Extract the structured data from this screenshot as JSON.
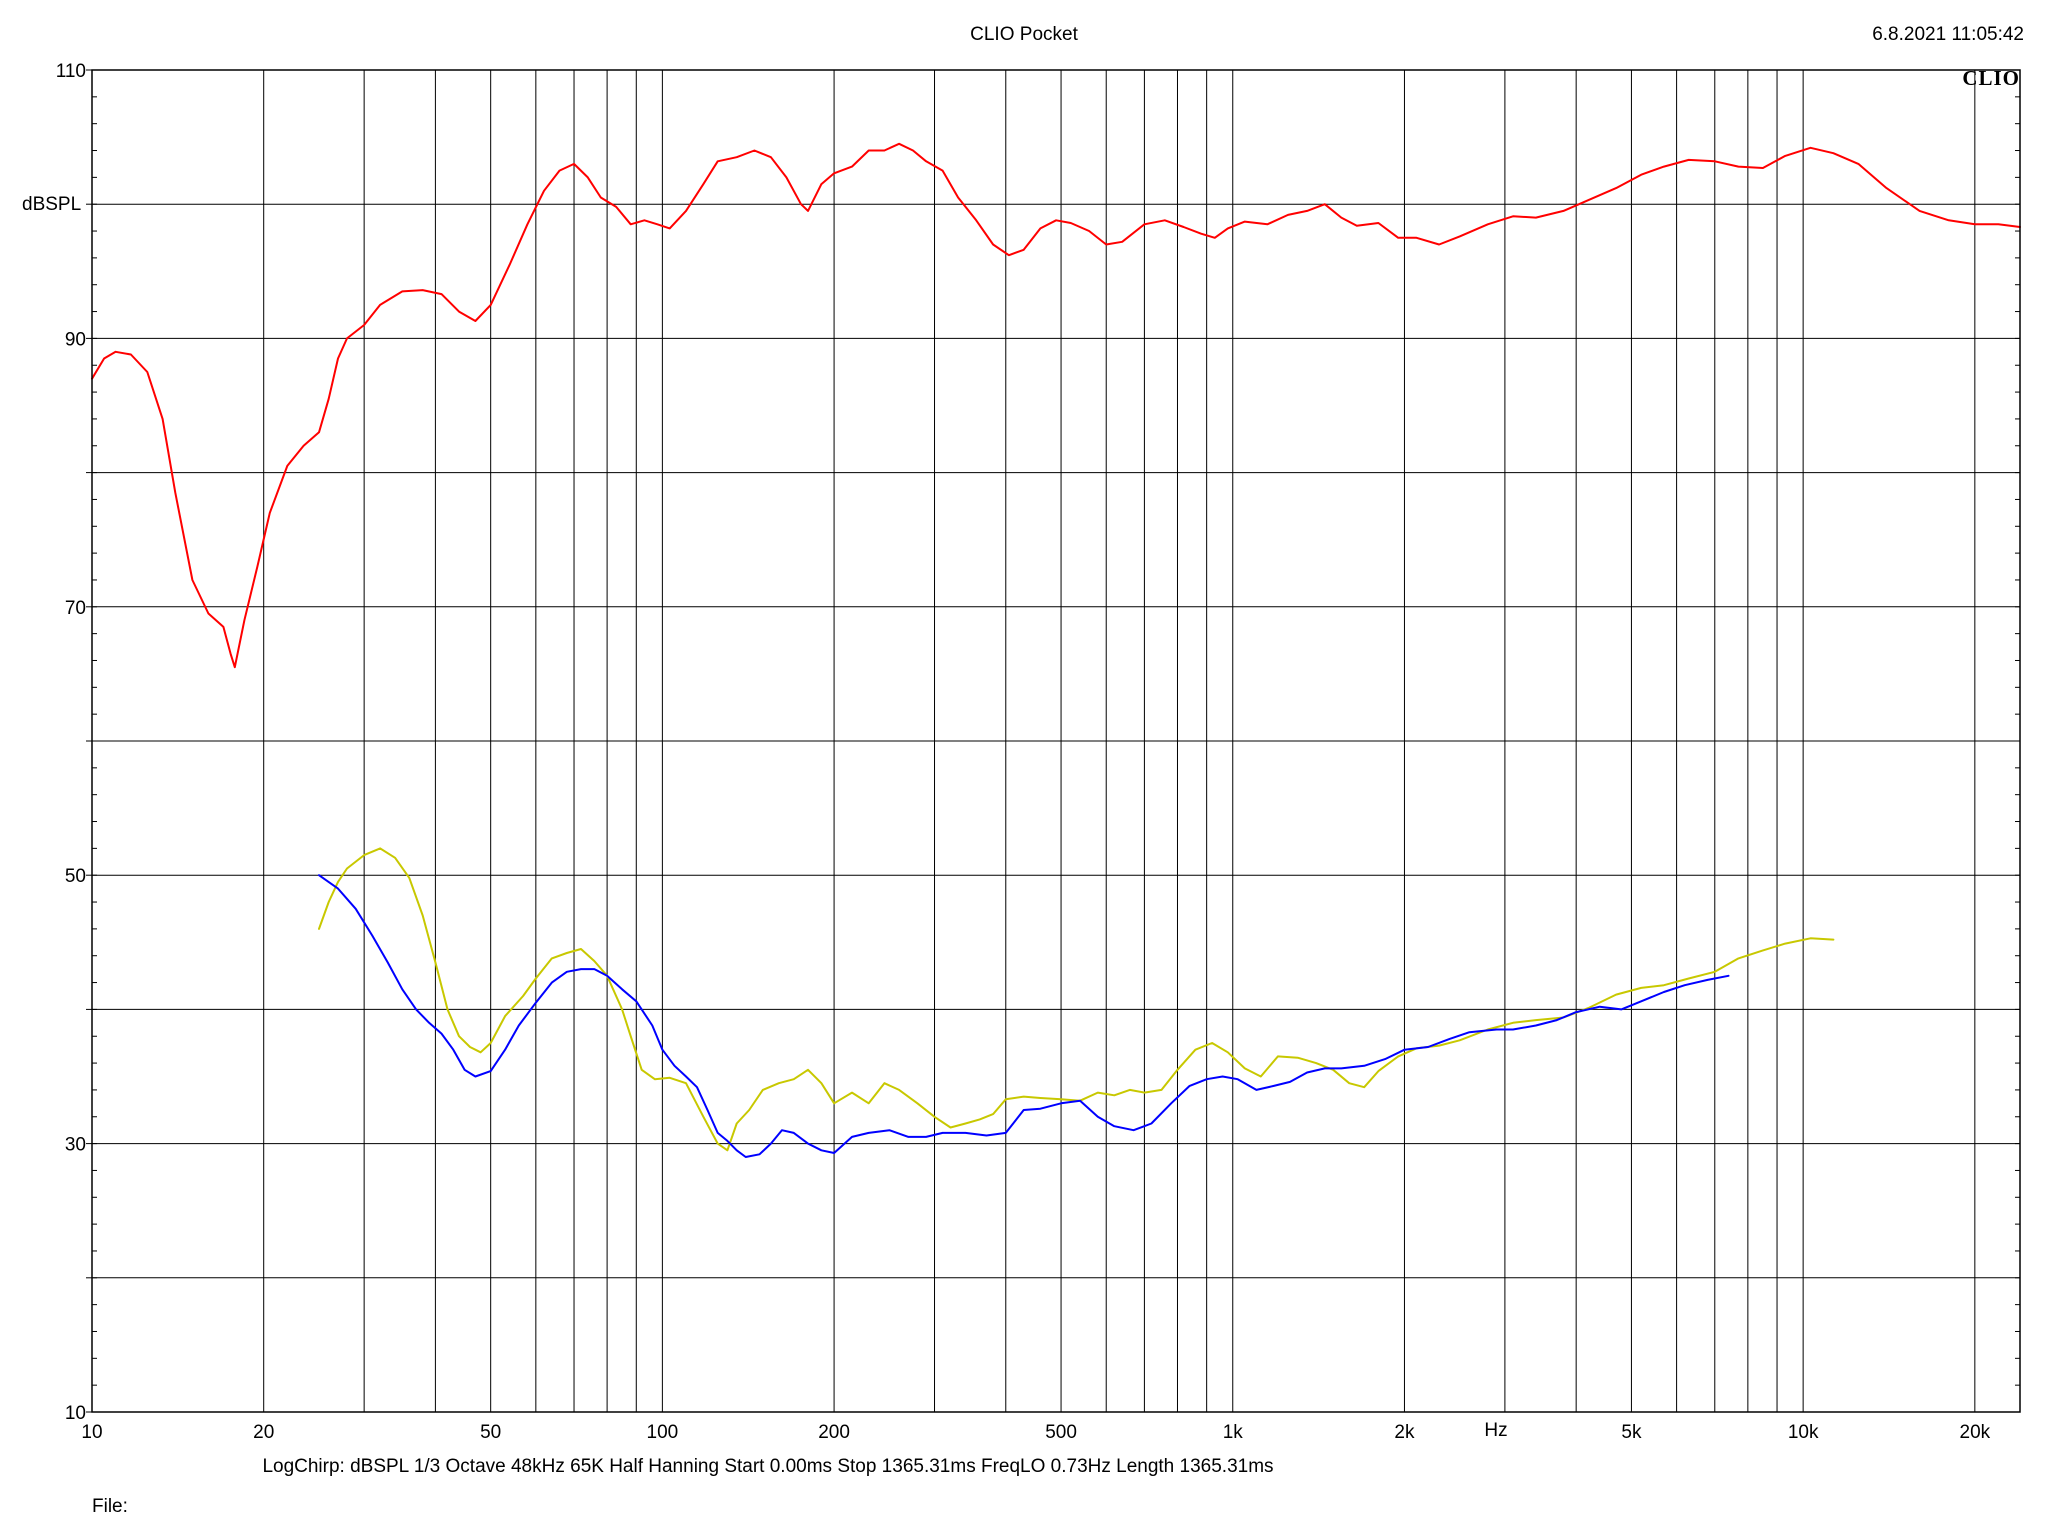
{
  "header": {
    "title": "CLIO Pocket",
    "timestamp": "6.8.2021 11:05:42",
    "logo": "CLIO"
  },
  "footer": {
    "params": "LogChirp:  dBSPL   1/3 Octave   48kHz   65K   Half Hanning   Start 0.00ms    Stop 1365.31ms    FreqLO 0.73Hz    Length 1365.31ms",
    "file_label": "File:"
  },
  "chart_data": {
    "type": "line",
    "title": "CLIO Pocket",
    "xlabel": "Hz",
    "ylabel": "dBSPL",
    "xscale": "log",
    "xlim": [
      10,
      24000
    ],
    "ylim": [
      10,
      110
    ],
    "grid": true,
    "legend": "none",
    "x_ticks": [
      {
        "value": 10,
        "label": "10"
      },
      {
        "value": 20,
        "label": "20"
      },
      {
        "value": 50,
        "label": "50"
      },
      {
        "value": 100,
        "label": "100"
      },
      {
        "value": 200,
        "label": "200"
      },
      {
        "value": 500,
        "label": "500"
      },
      {
        "value": 1000,
        "label": "1k"
      },
      {
        "value": 2000,
        "label": "2k"
      },
      {
        "value": 5000,
        "label": "5k"
      },
      {
        "value": 10000,
        "label": "10k"
      },
      {
        "value": 20000,
        "label": "20k"
      }
    ],
    "y_ticks": [
      {
        "value": 10,
        "label": "10"
      },
      {
        "value": 30,
        "label": "30"
      },
      {
        "value": 50,
        "label": "50"
      },
      {
        "value": 70,
        "label": "70"
      },
      {
        "value": 90,
        "label": "90"
      },
      {
        "value": 110,
        "label": "110"
      }
    ],
    "series": [
      {
        "color": "#ff0000",
        "points": [
          [
            10,
            87
          ],
          [
            10.5,
            88.5
          ],
          [
            11,
            89
          ],
          [
            11.7,
            88.8
          ],
          [
            12.5,
            87.5
          ],
          [
            13.3,
            84
          ],
          [
            14,
            78.5
          ],
          [
            15,
            72
          ],
          [
            16,
            69.5
          ],
          [
            17,
            68.5
          ],
          [
            17.5,
            66.5
          ],
          [
            17.8,
            65.5
          ],
          [
            18.5,
            69
          ],
          [
            19.5,
            73
          ],
          [
            20.5,
            77
          ],
          [
            22,
            80.5
          ],
          [
            23.5,
            82
          ],
          [
            25,
            83
          ],
          [
            26,
            85.5
          ],
          [
            27,
            88.5
          ],
          [
            28,
            90
          ],
          [
            30,
            91
          ],
          [
            32,
            92.5
          ],
          [
            35,
            93.5
          ],
          [
            38,
            93.6
          ],
          [
            41,
            93.3
          ],
          [
            44,
            92
          ],
          [
            47,
            91.3
          ],
          [
            50,
            92.5
          ],
          [
            54,
            95.5
          ],
          [
            58,
            98.5
          ],
          [
            62,
            101
          ],
          [
            66,
            102.5
          ],
          [
            70,
            103
          ],
          [
            74,
            102
          ],
          [
            78,
            100.5
          ],
          [
            83,
            99.8
          ],
          [
            88,
            98.5
          ],
          [
            93,
            98.8
          ],
          [
            98,
            98.5
          ],
          [
            103,
            98.2
          ],
          [
            110,
            99.5
          ],
          [
            118,
            101.5
          ],
          [
            125,
            103.2
          ],
          [
            135,
            103.5
          ],
          [
            145,
            104
          ],
          [
            155,
            103.5
          ],
          [
            165,
            102
          ],
          [
            175,
            100
          ],
          [
            180,
            99.5
          ],
          [
            190,
            101.5
          ],
          [
            200,
            102.3
          ],
          [
            215,
            102.8
          ],
          [
            230,
            104
          ],
          [
            245,
            104
          ],
          [
            260,
            104.5
          ],
          [
            275,
            104
          ],
          [
            290,
            103.2
          ],
          [
            310,
            102.5
          ],
          [
            330,
            100.5
          ],
          [
            355,
            98.8
          ],
          [
            380,
            97
          ],
          [
            405,
            96.2
          ],
          [
            430,
            96.6
          ],
          [
            460,
            98.2
          ],
          [
            490,
            98.8
          ],
          [
            520,
            98.6
          ],
          [
            560,
            98
          ],
          [
            600,
            97
          ],
          [
            640,
            97.2
          ],
          [
            700,
            98.5
          ],
          [
            760,
            98.8
          ],
          [
            820,
            98.3
          ],
          [
            880,
            97.8
          ],
          [
            930,
            97.5
          ],
          [
            980,
            98.2
          ],
          [
            1050,
            98.7
          ],
          [
            1150,
            98.5
          ],
          [
            1250,
            99.2
          ],
          [
            1350,
            99.5
          ],
          [
            1450,
            100
          ],
          [
            1550,
            99
          ],
          [
            1650,
            98.4
          ],
          [
            1800,
            98.6
          ],
          [
            1950,
            97.5
          ],
          [
            2100,
            97.5
          ],
          [
            2300,
            97
          ],
          [
            2500,
            97.6
          ],
          [
            2800,
            98.5
          ],
          [
            3100,
            99.1
          ],
          [
            3400,
            99
          ],
          [
            3800,
            99.5
          ],
          [
            4200,
            100.3
          ],
          [
            4700,
            101.2
          ],
          [
            5200,
            102.2
          ],
          [
            5700,
            102.8
          ],
          [
            6300,
            103.3
          ],
          [
            7000,
            103.2
          ],
          [
            7700,
            102.8
          ],
          [
            8500,
            102.7
          ],
          [
            9300,
            103.6
          ],
          [
            10300,
            104.2
          ],
          [
            11300,
            103.8
          ],
          [
            12500,
            103
          ],
          [
            14000,
            101.2
          ],
          [
            16000,
            99.5
          ],
          [
            18000,
            98.8
          ],
          [
            20000,
            98.5
          ],
          [
            22000,
            98.5
          ],
          [
            24000,
            98.3
          ]
        ]
      },
      {
        "color": "#c8c800",
        "points": [
          [
            25,
            46
          ],
          [
            26,
            48
          ],
          [
            27,
            49.5
          ],
          [
            28,
            50.5
          ],
          [
            30,
            51.5
          ],
          [
            32,
            52
          ],
          [
            34,
            51.3
          ],
          [
            36,
            49.8
          ],
          [
            38,
            47
          ],
          [
            40,
            43.5
          ],
          [
            42,
            40
          ],
          [
            44,
            38
          ],
          [
            46,
            37.2
          ],
          [
            48,
            36.8
          ],
          [
            50,
            37.5
          ],
          [
            53,
            39.5
          ],
          [
            57,
            41
          ],
          [
            60,
            42.3
          ],
          [
            64,
            43.8
          ],
          [
            68,
            44.2
          ],
          [
            72,
            44.5
          ],
          [
            76,
            43.6
          ],
          [
            80,
            42.5
          ],
          [
            85,
            40
          ],
          [
            88,
            38
          ],
          [
            92,
            35.5
          ],
          [
            97,
            34.8
          ],
          [
            103,
            34.9
          ],
          [
            110,
            34.5
          ],
          [
            118,
            32
          ],
          [
            125,
            30
          ],
          [
            130,
            29.5
          ],
          [
            135,
            31.5
          ],
          [
            142,
            32.5
          ],
          [
            150,
            34
          ],
          [
            160,
            34.5
          ],
          [
            170,
            34.8
          ],
          [
            180,
            35.5
          ],
          [
            190,
            34.5
          ],
          [
            200,
            33
          ],
          [
            215,
            33.8
          ],
          [
            230,
            33
          ],
          [
            245,
            34.5
          ],
          [
            260,
            34
          ],
          [
            280,
            33
          ],
          [
            300,
            32
          ],
          [
            320,
            31.2
          ],
          [
            340,
            31.5
          ],
          [
            360,
            31.8
          ],
          [
            380,
            32.2
          ],
          [
            400,
            33.3
          ],
          [
            430,
            33.5
          ],
          [
            460,
            33.4
          ],
          [
            500,
            33.3
          ],
          [
            540,
            33.2
          ],
          [
            580,
            33.8
          ],
          [
            620,
            33.6
          ],
          [
            660,
            34
          ],
          [
            700,
            33.8
          ],
          [
            750,
            34
          ],
          [
            800,
            35.5
          ],
          [
            860,
            37
          ],
          [
            920,
            37.5
          ],
          [
            980,
            36.8
          ],
          [
            1050,
            35.6
          ],
          [
            1120,
            35
          ],
          [
            1200,
            36.5
          ],
          [
            1300,
            36.4
          ],
          [
            1400,
            36
          ],
          [
            1500,
            35.5
          ],
          [
            1600,
            34.5
          ],
          [
            1700,
            34.2
          ],
          [
            1800,
            35.4
          ],
          [
            1950,
            36.5
          ],
          [
            2100,
            37.1
          ],
          [
            2300,
            37.3
          ],
          [
            2500,
            37.7
          ],
          [
            2800,
            38.5
          ],
          [
            3100,
            39
          ],
          [
            3400,
            39.2
          ],
          [
            3800,
            39.4
          ],
          [
            4200,
            40.1
          ],
          [
            4700,
            41.1
          ],
          [
            5200,
            41.6
          ],
          [
            5700,
            41.8
          ],
          [
            6300,
            42.3
          ],
          [
            7000,
            42.8
          ],
          [
            7700,
            43.8
          ],
          [
            8500,
            44.4
          ],
          [
            9300,
            44.9
          ],
          [
            10300,
            45.3
          ],
          [
            11300,
            45.2
          ]
        ]
      },
      {
        "color": "#0000ff",
        "points": [
          [
            25,
            50
          ],
          [
            27,
            49
          ],
          [
            29,
            47.5
          ],
          [
            31,
            45.5
          ],
          [
            33,
            43.5
          ],
          [
            35,
            41.5
          ],
          [
            37,
            40
          ],
          [
            39,
            39
          ],
          [
            41,
            38.2
          ],
          [
            43,
            37
          ],
          [
            45,
            35.5
          ],
          [
            47,
            35
          ],
          [
            50,
            35.4
          ],
          [
            53,
            37
          ],
          [
            56,
            38.8
          ],
          [
            60,
            40.5
          ],
          [
            64,
            42
          ],
          [
            68,
            42.8
          ],
          [
            72,
            43
          ],
          [
            76,
            43
          ],
          [
            80,
            42.5
          ],
          [
            85,
            41.5
          ],
          [
            90,
            40.6
          ],
          [
            96,
            38.8
          ],
          [
            100,
            37
          ],
          [
            105,
            35.8
          ],
          [
            110,
            35
          ],
          [
            115,
            34.2
          ],
          [
            120,
            32.5
          ],
          [
            125,
            30.8
          ],
          [
            130,
            30.2
          ],
          [
            135,
            29.5
          ],
          [
            140,
            29
          ],
          [
            148,
            29.2
          ],
          [
            155,
            30
          ],
          [
            162,
            31
          ],
          [
            170,
            30.8
          ],
          [
            180,
            30
          ],
          [
            190,
            29.5
          ],
          [
            200,
            29.3
          ],
          [
            215,
            30.5
          ],
          [
            230,
            30.8
          ],
          [
            250,
            31
          ],
          [
            270,
            30.5
          ],
          [
            290,
            30.5
          ],
          [
            310,
            30.8
          ],
          [
            340,
            30.8
          ],
          [
            370,
            30.6
          ],
          [
            400,
            30.8
          ],
          [
            430,
            32.5
          ],
          [
            460,
            32.6
          ],
          [
            500,
            33
          ],
          [
            540,
            33.2
          ],
          [
            580,
            32
          ],
          [
            620,
            31.3
          ],
          [
            670,
            31
          ],
          [
            720,
            31.5
          ],
          [
            780,
            33
          ],
          [
            840,
            34.3
          ],
          [
            900,
            34.8
          ],
          [
            960,
            35
          ],
          [
            1020,
            34.8
          ],
          [
            1100,
            34
          ],
          [
            1180,
            34.3
          ],
          [
            1260,
            34.6
          ],
          [
            1350,
            35.3
          ],
          [
            1450,
            35.6
          ],
          [
            1550,
            35.6
          ],
          [
            1700,
            35.8
          ],
          [
            1850,
            36.3
          ],
          [
            2000,
            37
          ],
          [
            2200,
            37.2
          ],
          [
            2400,
            37.8
          ],
          [
            2600,
            38.3
          ],
          [
            2900,
            38.5
          ],
          [
            3100,
            38.5
          ],
          [
            3400,
            38.8
          ],
          [
            3700,
            39.2
          ],
          [
            4000,
            39.8
          ],
          [
            4400,
            40.2
          ],
          [
            4800,
            40
          ],
          [
            5200,
            40.6
          ],
          [
            5700,
            41.3
          ],
          [
            6200,
            41.8
          ],
          [
            6800,
            42.2
          ],
          [
            7400,
            42.5
          ]
        ]
      }
    ]
  }
}
